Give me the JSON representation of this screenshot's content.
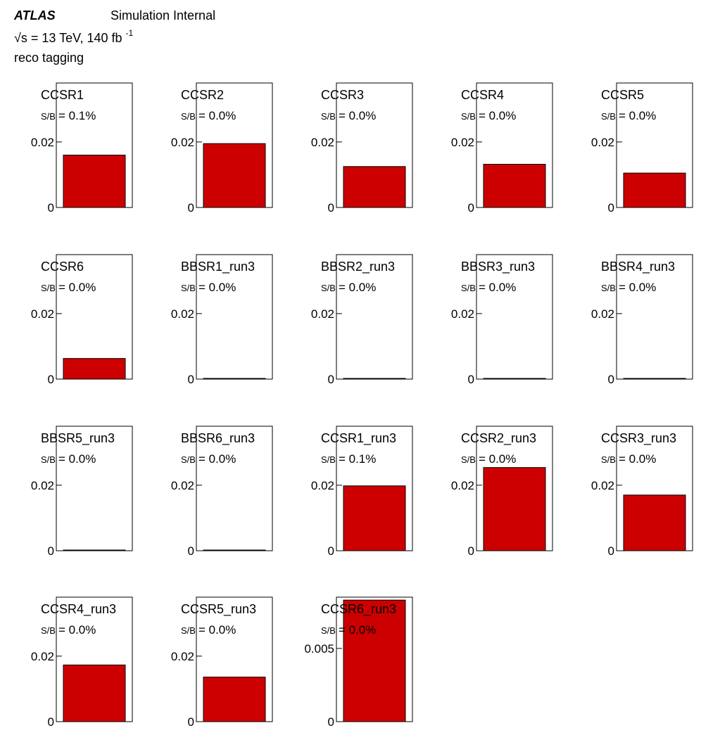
{
  "header": {
    "experiment": "ATLAS",
    "status": "Simulation Internal",
    "energy_prefix": "√s = 13 TeV, 140 fb",
    "energy_exponent": "-1",
    "selection": "reco tagging"
  },
  "chart_data": [
    {
      "type": "bar",
      "title": "CCSR1",
      "annotation": "S/B = 0.1%",
      "values": [
        0.016
      ],
      "ylim": [
        0,
        0.038
      ],
      "yticks": [
        0,
        0.02
      ],
      "ytick_labels": [
        "0",
        "0.02"
      ]
    },
    {
      "type": "bar",
      "title": "CCSR2",
      "annotation": "S/B = 0.0%",
      "values": [
        0.0195
      ],
      "ylim": [
        0,
        0.038
      ],
      "yticks": [
        0,
        0.02
      ],
      "ytick_labels": [
        "0",
        "0.02"
      ]
    },
    {
      "type": "bar",
      "title": "CCSR3",
      "annotation": "S/B = 0.0%",
      "values": [
        0.0125
      ],
      "ylim": [
        0,
        0.038
      ],
      "yticks": [
        0,
        0.02
      ],
      "ytick_labels": [
        "0",
        "0.02"
      ]
    },
    {
      "type": "bar",
      "title": "CCSR4",
      "annotation": "S/B = 0.0%",
      "values": [
        0.0132
      ],
      "ylim": [
        0,
        0.038
      ],
      "yticks": [
        0,
        0.02
      ],
      "ytick_labels": [
        "0",
        "0.02"
      ]
    },
    {
      "type": "bar",
      "title": "CCSR5",
      "annotation": "S/B = 0.0%",
      "values": [
        0.0105
      ],
      "ylim": [
        0,
        0.038
      ],
      "yticks": [
        0,
        0.02
      ],
      "ytick_labels": [
        "0",
        "0.02"
      ]
    },
    {
      "type": "bar",
      "title": "CCSR6",
      "annotation": "S/B = 0.0%",
      "values": [
        0.0063
      ],
      "ylim": [
        0,
        0.038
      ],
      "yticks": [
        0,
        0.02
      ],
      "ytick_labels": [
        "0",
        "0.02"
      ]
    },
    {
      "type": "bar",
      "title": "BBSR1_run3",
      "annotation": "S/B = 0.0%",
      "values": [
        0.0002
      ],
      "ylim": [
        0,
        0.038
      ],
      "yticks": [
        0,
        0.02
      ],
      "ytick_labels": [
        "0",
        "0.02"
      ]
    },
    {
      "type": "bar",
      "title": "BBSR2_run3",
      "annotation": "S/B = 0.0%",
      "values": [
        0.0002
      ],
      "ylim": [
        0,
        0.038
      ],
      "yticks": [
        0,
        0.02
      ],
      "ytick_labels": [
        "0",
        "0.02"
      ]
    },
    {
      "type": "bar",
      "title": "BBSR3_run3",
      "annotation": "S/B = 0.0%",
      "values": [
        0.0002
      ],
      "ylim": [
        0,
        0.038
      ],
      "yticks": [
        0,
        0.02
      ],
      "ytick_labels": [
        "0",
        "0.02"
      ]
    },
    {
      "type": "bar",
      "title": "BBSR4_run3",
      "annotation": "S/B = 0.0%",
      "values": [
        0.0002
      ],
      "ylim": [
        0,
        0.038
      ],
      "yticks": [
        0,
        0.02
      ],
      "ytick_labels": [
        "0",
        "0.02"
      ]
    },
    {
      "type": "bar",
      "title": "BBSR5_run3",
      "annotation": "S/B = 0.0%",
      "values": [
        0.0002
      ],
      "ylim": [
        0,
        0.038
      ],
      "yticks": [
        0,
        0.02
      ],
      "ytick_labels": [
        "0",
        "0.02"
      ]
    },
    {
      "type": "bar",
      "title": "BBSR6_run3",
      "annotation": "S/B = 0.0%",
      "values": [
        0.0002
      ],
      "ylim": [
        0,
        0.038
      ],
      "yticks": [
        0,
        0.02
      ],
      "ytick_labels": [
        "0",
        "0.02"
      ]
    },
    {
      "type": "bar",
      "title": "CCSR1_run3",
      "annotation": "S/B = 0.1%",
      "values": [
        0.0198
      ],
      "ylim": [
        0,
        0.038
      ],
      "yticks": [
        0,
        0.02
      ],
      "ytick_labels": [
        "0",
        "0.02"
      ]
    },
    {
      "type": "bar",
      "title": "CCSR2_run3",
      "annotation": "S/B = 0.0%",
      "values": [
        0.0254
      ],
      "ylim": [
        0,
        0.038
      ],
      "yticks": [
        0,
        0.02
      ],
      "ytick_labels": [
        "0",
        "0.02"
      ]
    },
    {
      "type": "bar",
      "title": "CCSR3_run3",
      "annotation": "S/B = 0.0%",
      "values": [
        0.017
      ],
      "ylim": [
        0,
        0.038
      ],
      "yticks": [
        0,
        0.02
      ],
      "ytick_labels": [
        "0",
        "0.02"
      ]
    },
    {
      "type": "bar",
      "title": "CCSR4_run3",
      "annotation": "S/B = 0.0%",
      "values": [
        0.0173
      ],
      "ylim": [
        0,
        0.038
      ],
      "yticks": [
        0,
        0.02
      ],
      "ytick_labels": [
        "0",
        "0.02"
      ]
    },
    {
      "type": "bar",
      "title": "CCSR5_run3",
      "annotation": "S/B = 0.0%",
      "values": [
        0.0136
      ],
      "ylim": [
        0,
        0.038
      ],
      "yticks": [
        0,
        0.02
      ],
      "ytick_labels": [
        "0",
        "0.02"
      ]
    },
    {
      "type": "bar",
      "title": "CCSR6_run3",
      "annotation": "S/B = 0.0%",
      "values": [
        0.0083
      ],
      "ylim": [
        0,
        0.0085
      ],
      "yticks": [
        0,
        0.005
      ],
      "ytick_labels": [
        "0",
        "0.005"
      ]
    }
  ],
  "colors": {
    "bar_fill": "#cc0000",
    "bar_stroke": "#000000",
    "frame": "#000000"
  }
}
